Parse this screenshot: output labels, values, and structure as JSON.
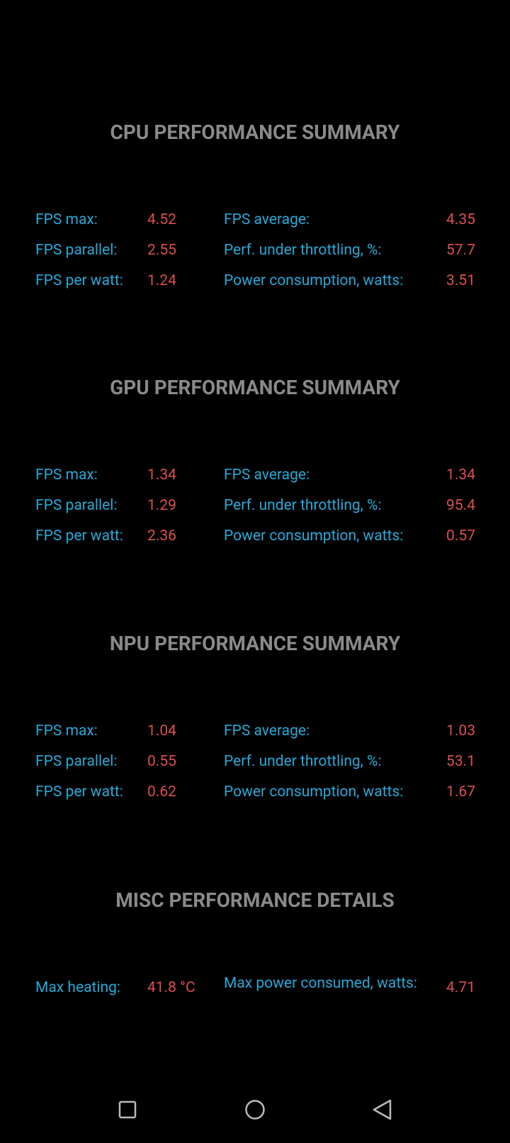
{
  "sections": [
    {
      "title": "CPU PERFORMANCE SUMMARY",
      "rows": [
        [
          {
            "label": "FPS max:",
            "value": "4.52"
          },
          {
            "label": "FPS average:",
            "value": "4.35"
          }
        ],
        [
          {
            "label": "FPS parallel:",
            "value": "2.55"
          },
          {
            "label": "Perf. under throttling, %:",
            "value": "57.7"
          }
        ],
        [
          {
            "label": "FPS per watt:",
            "value": "1.24"
          },
          {
            "label": "Power consumption, watts:",
            "value": "3.51"
          }
        ]
      ]
    },
    {
      "title": "GPU PERFORMANCE SUMMARY",
      "rows": [
        [
          {
            "label": "FPS max:",
            "value": "1.34"
          },
          {
            "label": "FPS average:",
            "value": "1.34"
          }
        ],
        [
          {
            "label": "FPS parallel:",
            "value": "1.29"
          },
          {
            "label": "Perf. under throttling, %:",
            "value": "95.4"
          }
        ],
        [
          {
            "label": "FPS per watt:",
            "value": "2.36"
          },
          {
            "label": "Power consumption, watts:",
            "value": "0.57"
          }
        ]
      ]
    },
    {
      "title": "NPU PERFORMANCE SUMMARY",
      "rows": [
        [
          {
            "label": "FPS max:",
            "value": "1.04"
          },
          {
            "label": "FPS average:",
            "value": "1.03"
          }
        ],
        [
          {
            "label": "FPS parallel:",
            "value": "0.55"
          },
          {
            "label": "Perf. under throttling, %:",
            "value": "53.1"
          }
        ],
        [
          {
            "label": "FPS per watt:",
            "value": "0.62"
          },
          {
            "label": "Power consumption, watts:",
            "value": "1.67"
          }
        ]
      ]
    },
    {
      "title": "MISC PERFORMANCE DETAILS",
      "rows": [
        [
          {
            "label": "Max heating:",
            "value": "41.8 °C"
          },
          {
            "label": "Max power consumed, watts:",
            "value": "4.71"
          }
        ]
      ]
    }
  ]
}
